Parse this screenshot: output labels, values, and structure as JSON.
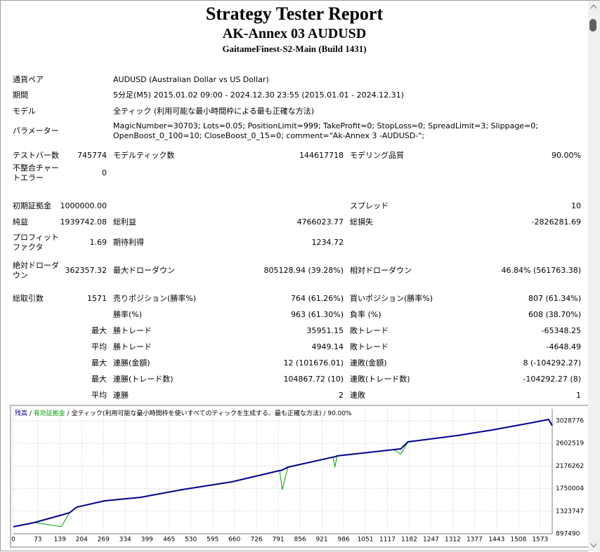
{
  "header": {
    "title": "Strategy Tester Report",
    "subtitle": "AK-Annex 03 AUDUSD",
    "server": "GaitameFinest-S2-Main (Build 1431)"
  },
  "info": [
    [
      "通貨ペア",
      "AUDUSD (Australian Dollar vs US Dollar)"
    ],
    [
      "期間",
      "5分足(M5) 2015.01.02 09:00 - 2024.12.30 23:55 (2015.01.01 - 2024.12.31)"
    ],
    [
      "モデル",
      "全ティック (利用可能な最小時間枠による最も正確な方法)"
    ],
    [
      "パラメーター",
      "MagicNumber=30703; Lots=0.05; PositionLimit=999; TakeProfit=0; StopLoss=0; SpreadLimit=3; Slippage=0; OpenBoost_0_100=10; CloseBoost_0_15=0; comment=\"Ak-Annex 3 -AUDUSD-\";"
    ]
  ],
  "table": {
    "rows": [
      [
        "テストバー数",
        "745774",
        "モデルティック数",
        "144617718",
        "モデリング品質",
        "90.00%"
      ],
      [
        "不整合チャートエラー",
        "0",
        null,
        null,
        null,
        null
      ],
      [
        "初期証拠金",
        "1000000.00",
        null,
        null,
        "スプレッド",
        "10"
      ],
      [
        "純益",
        "1939742.08",
        "総利益",
        "4766023.77",
        "総損失",
        "-2826281.69"
      ],
      [
        "プロフィットファクタ",
        "1.69",
        "期待利得",
        "1234.72",
        null,
        null
      ],
      [
        "絶対ドローダウン",
        "362357.32",
        "最大ドローダウン",
        "805128.94 (39.28%)",
        "相対ドローダウン",
        "46.84% (561763.38)"
      ],
      [
        "総取引数",
        "1571",
        "売りポジション(勝率%)",
        "764 (61.26%)",
        "買いポジション(勝率%)",
        "807 (61.34%)"
      ],
      [
        null,
        null,
        "勝率(%)",
        "963 (61.30%)",
        "負率 (%)",
        "608 (38.70%)"
      ],
      [
        null,
        "最大",
        "勝トレード",
        "35951.15",
        "敗トレード",
        "-65348.25"
      ],
      [
        null,
        "平均",
        "勝トレード",
        "4949.14",
        "敗トレード",
        "-4648.49"
      ],
      [
        null,
        "最大",
        "連勝(金額)",
        "12 (101676.01)",
        "連敗(金額)",
        "8 (-104292.27)"
      ],
      [
        null,
        "最大",
        "連勝(トレード数)",
        "104867.72 (10)",
        "連敗(トレード数)",
        "-104292.27 (8)"
      ],
      [
        null,
        "平均",
        "連勝",
        "2",
        "連敗",
        "1"
      ]
    ]
  },
  "chart_data": {
    "type": "line",
    "model_label": "全ティック(利用可能な最小時間枠を使いすべてのティックを生成する、最も正確な方法)",
    "quality_label": "90.00%",
    "x": [
      0,
      63,
      143,
      168,
      189,
      273,
      379,
      505,
      652,
      795,
      803,
      820,
      955,
      960,
      967,
      1136,
      1157,
      1178,
      1325,
      1430,
      1556,
      1598,
      1609
    ],
    "series": [
      {
        "name": "残高",
        "color": "#00008b",
        "values": [
          1030000,
          1109000,
          1250000,
          1295000,
          1400000,
          1520000,
          1585000,
          1731000,
          1877000,
          2090000,
          2100000,
          2155000,
          2345000,
          2350000,
          2367000,
          2486000,
          2500000,
          2632000,
          2751000,
          2857000,
          3002000,
          3055000,
          2940000
        ]
      },
      {
        "name": "有効証拠金",
        "color": "#00a000",
        "values": [
          1030000,
          1109000,
          1030000,
          1295000,
          1400000,
          1520000,
          1585000,
          1731000,
          1877000,
          2090000,
          1731000,
          2155000,
          2345000,
          2155000,
          2367000,
          2486000,
          2400000,
          2632000,
          2751000,
          2857000,
          3002000,
          3055000,
          2940000
        ]
      }
    ],
    "xlim": [
      0,
      1609
    ],
    "ylim": [
      897490,
      3253800
    ],
    "xticks": [
      0,
      73,
      139,
      204,
      269,
      334,
      399,
      465,
      530,
      595,
      660,
      726,
      791,
      856,
      921,
      986,
      1051,
      1117,
      1182,
      1247,
      1312,
      1377,
      1443,
      1508,
      1573
    ],
    "yticks": [
      897490,
      1323747,
      1750004,
      2176262,
      2602519,
      3028776
    ],
    "grid": true
  }
}
